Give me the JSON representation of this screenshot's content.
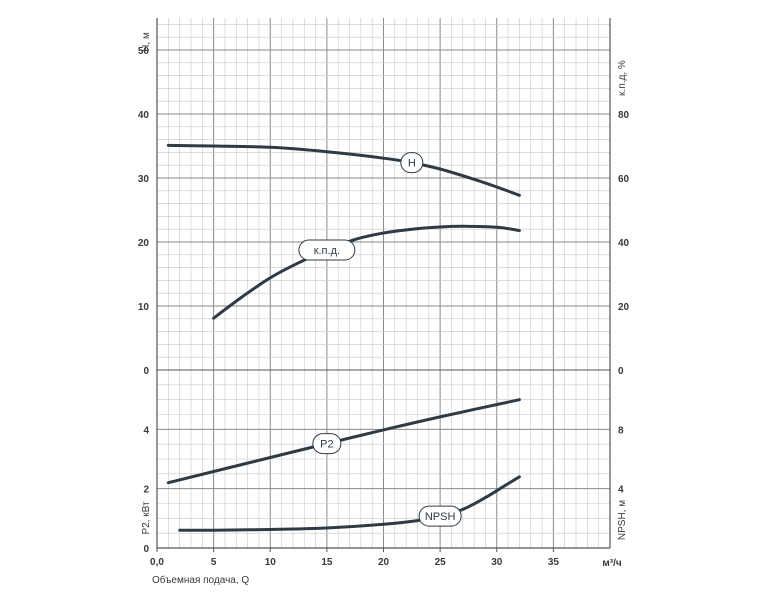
{
  "chart_data": {
    "type": "line",
    "x": {
      "label": "Объемная подача, Q",
      "unit": "м³/ч",
      "range": [
        0,
        40
      ],
      "ticks": [
        "0,0",
        "5",
        "10",
        "15",
        "20",
        "25",
        "30",
        "35"
      ]
    },
    "panels": {
      "upper": {
        "left_axis": {
          "label": "Н, м",
          "range": [
            0,
            55
          ],
          "ticks": [
            "0",
            "10",
            "20",
            "30",
            "40",
            "50"
          ]
        },
        "right_axis": {
          "label": "к.п.д, %",
          "range": [
            0,
            110
          ],
          "ticks": [
            "0",
            "20",
            "40",
            "60",
            "80"
          ]
        }
      },
      "lower": {
        "left_axis": {
          "label": "P2, кВт",
          "range": [
            0,
            6
          ],
          "ticks": [
            "0",
            "2",
            "4"
          ]
        },
        "right_axis": {
          "label": "NPSH, м",
          "range": [
            0,
            12
          ],
          "ticks": [
            "4",
            "8"
          ]
        }
      }
    },
    "series": [
      {
        "name": "H",
        "panel": "upper",
        "axis": "left",
        "x": [
          1,
          5,
          10,
          15,
          20,
          22.5,
          25,
          28,
          30,
          32
        ],
        "y": [
          35.1,
          35.0,
          34.8,
          34.1,
          33.1,
          32.4,
          31.4,
          29.8,
          28.6,
          27.3
        ]
      },
      {
        "name": "к.п.д.",
        "panel": "upper",
        "axis": "right",
        "x": [
          5,
          7.5,
          10,
          12.5,
          15,
          17.5,
          20,
          22.5,
          25,
          27,
          30,
          32
        ],
        "y": [
          16.2,
          22.8,
          28.8,
          33.5,
          37.5,
          40.8,
          42.8,
          44.0,
          44.7,
          44.9,
          44.6,
          43.6
        ]
      },
      {
        "name": "P2",
        "panel": "lower",
        "axis": "left",
        "x": [
          1,
          5,
          10,
          15,
          20,
          25,
          32
        ],
        "y": [
          2.2,
          2.58,
          3.05,
          3.52,
          3.98,
          4.42,
          5.0
        ]
      },
      {
        "name": "NPSH",
        "panel": "lower",
        "axis": "right",
        "x": [
          2,
          5,
          10,
          15,
          20,
          23,
          25,
          27,
          29,
          30.5,
          32
        ],
        "y": [
          1.2,
          1.2,
          1.25,
          1.35,
          1.6,
          1.85,
          2.15,
          2.6,
          3.4,
          4.1,
          4.8
        ]
      }
    ],
    "grid": true
  }
}
